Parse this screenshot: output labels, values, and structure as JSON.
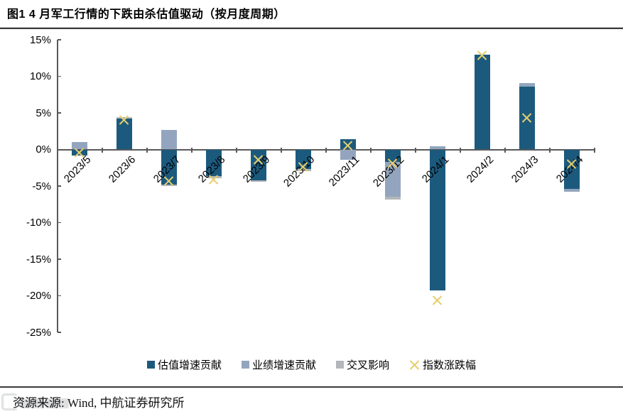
{
  "title": "图1 4 月军工行情的下跌由杀估值驱动（按月度周期）",
  "source_note": "资源来源: Wind, 中航证券研究所",
  "colors": {
    "valuation_bar": "#1c5a7d",
    "earnings_bar": "#93a5be",
    "cross_bar": "#b3b6ba",
    "index_marker": "#e5ce6e",
    "axis": "#595959"
  },
  "chart_data": {
    "type": "bar",
    "stacked": true,
    "title": "图1 4 月军工行情的下跌由杀估值驱动（按月度周期）",
    "xlabel": "",
    "ylabel": "",
    "ylim": [
      -25,
      15
    ],
    "ytick_step": 5,
    "ytick_labels": [
      "15%",
      "10%",
      "5%",
      "0%",
      "-5%",
      "-10%",
      "-15%",
      "-20%",
      "-25%"
    ],
    "grid": false,
    "legend_position": "bottom",
    "categories": [
      "2023/5",
      "2023/6",
      "2023/7",
      "2023/8",
      "2023/9",
      "2023/10",
      "2023/11",
      "2023/12",
      "2024/1",
      "2024/2",
      "2024/3",
      "2024/4"
    ],
    "series": [
      {
        "name": "估值增速贡献",
        "type": "bar",
        "color": "#1c5a7d",
        "values": [
          -0.8,
          4.2,
          -4.8,
          -3.6,
          -4.2,
          -2.7,
          1.4,
          -1.7,
          -19.3,
          13.0,
          8.6,
          -5.4
        ]
      },
      {
        "name": "业绩增速贡献",
        "type": "bar",
        "color": "#93a5be",
        "values": [
          1.0,
          0,
          2.7,
          0,
          0,
          0,
          -1.4,
          -4.8,
          0.4,
          0,
          0.5,
          -0.4
        ]
      },
      {
        "name": "交叉影响",
        "type": "bar",
        "color": "#b3b6ba",
        "values": [
          0,
          0.2,
          -0.2,
          -0.3,
          -0.2,
          -0.3,
          0,
          -0.3,
          0,
          0,
          0,
          0
        ]
      },
      {
        "name": "指数涨跌幅",
        "type": "scatter-x",
        "color": "#e5ce6e",
        "values": [
          -0.4,
          4.0,
          -4.3,
          -4.1,
          -1.4,
          -2.4,
          0.5,
          -1.9,
          -20.6,
          12.9,
          4.3,
          -2.0
        ]
      }
    ]
  }
}
